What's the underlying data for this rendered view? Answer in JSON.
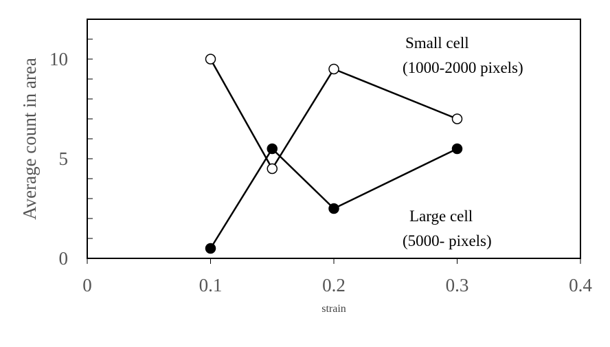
{
  "chart_data": {
    "type": "scatter",
    "title": "",
    "xlabel": "strain",
    "ylabel": "Average count in area",
    "xlim": [
      0,
      0.4
    ],
    "ylim": [
      0,
      12
    ],
    "x_ticks": [
      0,
      0.1,
      0.2,
      0.3,
      0.4
    ],
    "x_tick_labels": [
      "0",
      "0.1",
      "0.2",
      "0.3",
      "0.4"
    ],
    "y_ticks": [
      0,
      5,
      10
    ],
    "y_tick_labels": [
      "0",
      "5",
      "10"
    ],
    "y_minor_step": 1,
    "grid": false,
    "legend": "none",
    "series": [
      {
        "marker": "open-circle",
        "line": true,
        "color": "#000000",
        "x": [
          0.1,
          0.15,
          0.2,
          0.3
        ],
        "y": [
          10,
          4.5,
          9.5,
          7
        ]
      },
      {
        "marker": "filled-circle",
        "line": true,
        "color": "#000000",
        "x": [
          0.1,
          0.15,
          0.2,
          0.3
        ],
        "y": [
          0.5,
          5.5,
          2.5,
          5.5
        ]
      }
    ],
    "annotations": [
      {
        "lines": [
          "Small cell",
          "(1000-2000 pixels)"
        ]
      },
      {
        "lines": [
          "Large cell",
          "(5000- pixels)"
        ]
      }
    ]
  }
}
